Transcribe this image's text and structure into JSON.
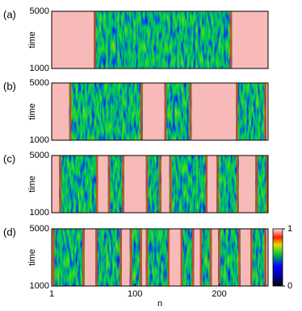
{
  "chart_data": [
    {
      "type": "heatmap",
      "panel_label": "(a)",
      "ylabel": "time",
      "ylim": [
        1000,
        5000
      ],
      "yticks": [
        1000,
        5000
      ],
      "xlim": [
        1,
        258
      ],
      "regions": [
        [
          51,
          215
        ]
      ]
    },
    {
      "type": "heatmap",
      "panel_label": "(b)",
      "ylabel": "time",
      "ylim": [
        1000,
        5000
      ],
      "yticks": [
        1000,
        5000
      ],
      "xlim": [
        1,
        258
      ],
      "regions": [
        [
          22,
          109
        ],
        [
          135,
          167
        ],
        [
          220,
          256
        ]
      ]
    },
    {
      "type": "heatmap",
      "panel_label": "(c)",
      "ylabel": "time",
      "ylim": [
        1000,
        5000
      ],
      "yticks": [
        1000,
        5000
      ],
      "xlim": [
        1,
        258
      ],
      "regions": [
        [
          10,
          56
        ],
        [
          68,
          87
        ],
        [
          113,
          131
        ],
        [
          141,
          186
        ],
        [
          197,
          223
        ],
        [
          243,
          258
        ]
      ]
    },
    {
      "type": "heatmap",
      "panel_label": "(d)",
      "ylabel": "time",
      "ylim": [
        1000,
        5000
      ],
      "yticks": [
        1000,
        5000
      ],
      "xlim": [
        1,
        258
      ],
      "xlabel": "n",
      "xticks": [
        1,
        100,
        200
      ],
      "colorbar_lim": [
        0,
        1
      ],
      "colorbar_ticks": [
        0,
        1
      ],
      "regions": [
        [
          2,
          40
        ],
        [
          53,
          84
        ],
        [
          94,
          108
        ],
        [
          113,
          141
        ],
        [
          154,
          170
        ],
        [
          177,
          191
        ],
        [
          199,
          225
        ],
        [
          237,
          256
        ]
      ]
    }
  ]
}
